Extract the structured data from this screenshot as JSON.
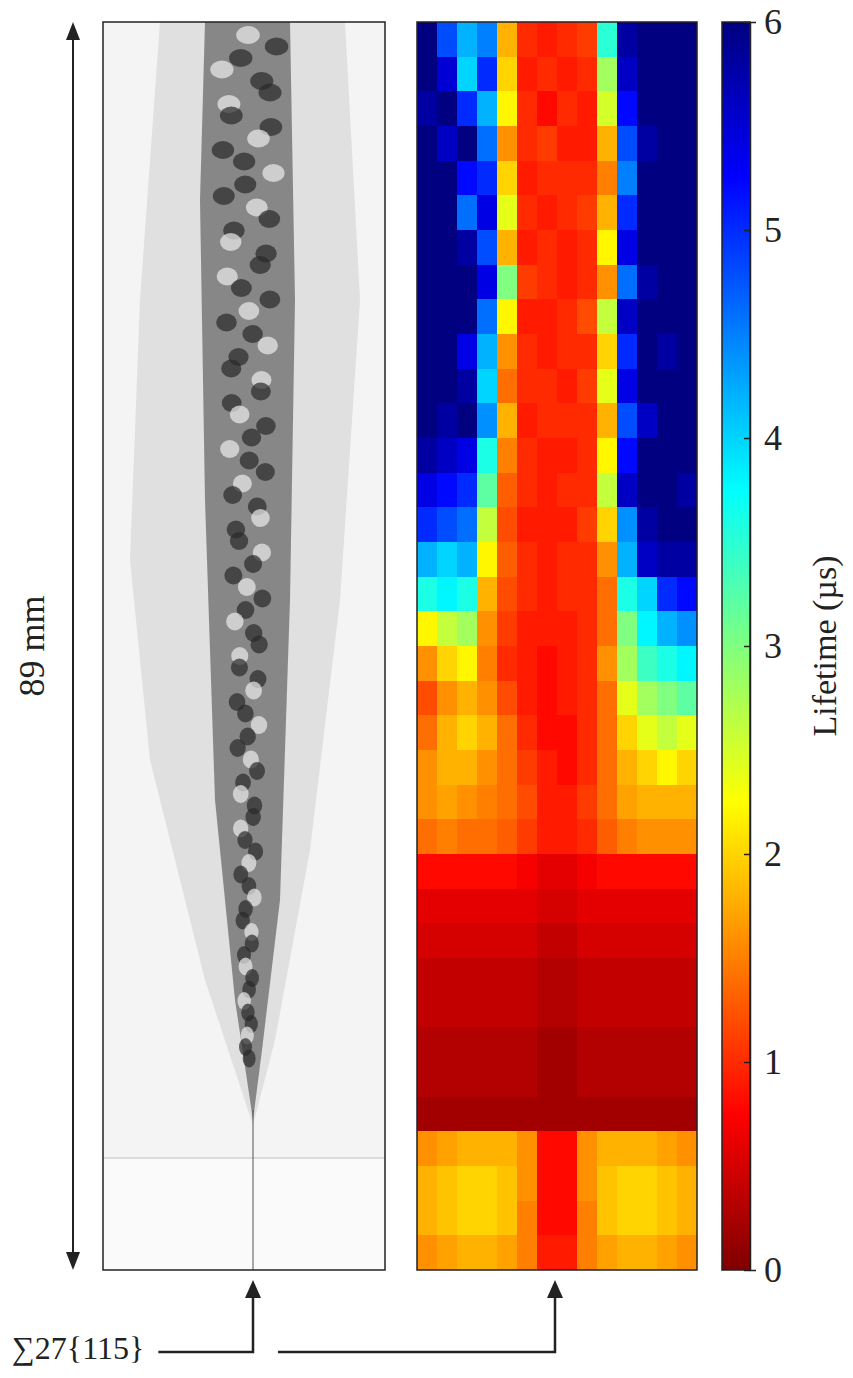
{
  "chart_data": {
    "type": "heatmap",
    "scale_label": "89 mm",
    "annotation": "∑27{115}",
    "colorbar": {
      "label": "Lifetime (µs)",
      "range": [
        0,
        6
      ],
      "ticks": [
        0,
        1,
        2,
        3,
        4,
        5,
        6
      ]
    },
    "cells": [
      [
        6,
        4.8,
        4.2,
        4.5,
        1.8,
        1.0,
        0.9,
        1.0,
        1.1,
        3.5,
        5.8,
        6,
        6,
        6
      ],
      [
        6,
        5.5,
        4.0,
        5.0,
        2.0,
        0.9,
        1.0,
        0.9,
        1.0,
        2.8,
        5.6,
        6,
        6,
        6
      ],
      [
        5.8,
        6,
        5.0,
        4.2,
        2.2,
        1.0,
        0.8,
        1.0,
        0.9,
        2.5,
        5.2,
        6,
        6,
        6
      ],
      [
        6,
        5.6,
        6,
        4.6,
        1.6,
        1.0,
        1.1,
        0.9,
        0.9,
        1.8,
        4.8,
        5.8,
        6,
        6
      ],
      [
        6,
        6,
        5.2,
        5.0,
        2.0,
        0.9,
        1.0,
        1.0,
        1.0,
        1.5,
        4.5,
        6,
        6,
        6
      ],
      [
        6,
        6,
        4.6,
        5.4,
        2.4,
        1.0,
        0.9,
        1.0,
        1.1,
        1.8,
        5.0,
        6,
        6,
        6
      ],
      [
        6,
        6,
        5.8,
        4.8,
        1.8,
        0.9,
        1.0,
        0.9,
        1.0,
        2.2,
        5.4,
        6,
        6,
        6
      ],
      [
        6,
        6,
        6,
        5.4,
        3.0,
        1.1,
        1.0,
        0.9,
        1.0,
        1.6,
        4.6,
        5.8,
        6,
        6
      ],
      [
        6,
        6,
        6,
        4.6,
        2.2,
        0.9,
        0.9,
        1.0,
        1.2,
        2.6,
        5.6,
        6,
        6,
        6
      ],
      [
        6,
        6,
        5.4,
        4.2,
        1.6,
        1.0,
        0.9,
        1.0,
        1.0,
        2.0,
        5.0,
        6,
        5.8,
        6
      ],
      [
        6,
        6,
        5.8,
        4.0,
        1.4,
        1.0,
        1.0,
        0.9,
        1.1,
        2.4,
        5.4,
        6,
        6,
        6
      ],
      [
        6,
        5.8,
        6,
        4.4,
        1.8,
        0.9,
        1.0,
        1.0,
        1.0,
        1.8,
        4.8,
        5.6,
        6,
        6
      ],
      [
        5.8,
        5.6,
        5.4,
        3.6,
        1.5,
        1.0,
        0.9,
        0.9,
        1.0,
        2.2,
        5.2,
        6,
        6,
        6
      ],
      [
        5.4,
        5.2,
        5.0,
        3.2,
        1.3,
        1.0,
        0.9,
        1.0,
        1.0,
        2.6,
        5.6,
        6,
        6,
        5.8
      ],
      [
        5.0,
        4.8,
        4.6,
        2.6,
        1.2,
        0.9,
        0.9,
        0.9,
        1.1,
        2.0,
        4.4,
        5.8,
        6,
        6
      ],
      [
        4.2,
        4.0,
        4.2,
        2.2,
        1.3,
        1.0,
        0.9,
        1.0,
        1.0,
        1.6,
        4.2,
        5.6,
        5.8,
        5.8
      ],
      [
        3.6,
        3.8,
        3.6,
        1.8,
        1.2,
        1.0,
        0.9,
        1.0,
        1.0,
        1.4,
        3.6,
        4.0,
        5.0,
        5.2
      ],
      [
        2.2,
        2.6,
        2.8,
        1.6,
        1.1,
        0.9,
        0.9,
        0.9,
        1.0,
        1.4,
        3.0,
        3.8,
        4.2,
        4.4
      ],
      [
        1.6,
        2.0,
        2.2,
        1.5,
        1.0,
        0.9,
        0.8,
        0.9,
        1.0,
        1.6,
        2.8,
        3.4,
        3.6,
        3.8
      ],
      [
        1.2,
        1.6,
        1.8,
        1.6,
        1.2,
        0.9,
        0.8,
        0.9,
        1.0,
        1.4,
        2.4,
        2.8,
        3.0,
        3.2
      ],
      [
        1.4,
        1.8,
        2.0,
        1.8,
        1.4,
        1.0,
        0.8,
        0.8,
        1.0,
        1.4,
        2.0,
        2.4,
        2.6,
        2.4
      ],
      [
        1.6,
        1.8,
        1.8,
        1.6,
        1.4,
        1.1,
        0.9,
        0.8,
        1.0,
        1.4,
        1.8,
        2.0,
        2.2,
        2.0
      ],
      [
        1.6,
        1.7,
        1.6,
        1.5,
        1.4,
        1.2,
        0.9,
        0.9,
        1.1,
        1.4,
        1.7,
        1.8,
        1.8,
        1.8
      ],
      [
        1.4,
        1.5,
        1.4,
        1.4,
        1.3,
        1.1,
        0.9,
        0.9,
        1.0,
        1.3,
        1.5,
        1.6,
        1.6,
        1.6
      ],
      [
        0.8,
        0.8,
        0.8,
        0.8,
        0.8,
        0.7,
        0.6,
        0.6,
        0.7,
        0.8,
        0.8,
        0.8,
        0.8,
        0.8
      ],
      [
        0.6,
        0.6,
        0.6,
        0.6,
        0.6,
        0.6,
        0.5,
        0.5,
        0.6,
        0.6,
        0.6,
        0.6,
        0.6,
        0.6
      ],
      [
        0.5,
        0.5,
        0.5,
        0.5,
        0.5,
        0.5,
        0.4,
        0.4,
        0.5,
        0.5,
        0.5,
        0.5,
        0.5,
        0.5
      ],
      [
        0.4,
        0.4,
        0.4,
        0.4,
        0.4,
        0.4,
        0.3,
        0.3,
        0.4,
        0.4,
        0.4,
        0.4,
        0.4,
        0.4
      ],
      [
        0.4,
        0.4,
        0.4,
        0.4,
        0.4,
        0.4,
        0.3,
        0.3,
        0.4,
        0.4,
        0.4,
        0.4,
        0.4,
        0.4
      ],
      [
        0.3,
        0.3,
        0.3,
        0.3,
        0.3,
        0.3,
        0.2,
        0.2,
        0.3,
        0.3,
        0.3,
        0.3,
        0.3,
        0.3
      ],
      [
        0.3,
        0.3,
        0.3,
        0.3,
        0.3,
        0.3,
        0.2,
        0.2,
        0.3,
        0.3,
        0.3,
        0.3,
        0.3,
        0.3
      ],
      [
        0.2,
        0.2,
        0.2,
        0.2,
        0.2,
        0.2,
        0.2,
        0.2,
        0.2,
        0.2,
        0.2,
        0.2,
        0.2,
        0.2
      ],
      [
        1.6,
        1.7,
        1.8,
        1.8,
        1.8,
        1.6,
        0.8,
        0.8,
        1.6,
        1.8,
        1.8,
        1.8,
        1.7,
        1.6
      ],
      [
        1.8,
        1.9,
        2.0,
        2.0,
        1.9,
        1.6,
        0.8,
        0.8,
        1.6,
        1.9,
        2.0,
        2.0,
        1.9,
        1.8
      ],
      [
        1.8,
        1.9,
        2.0,
        2.0,
        1.9,
        1.5,
        0.8,
        0.8,
        1.5,
        1.9,
        2.0,
        2.0,
        1.9,
        1.8
      ],
      [
        1.6,
        1.7,
        1.8,
        1.8,
        1.7,
        1.5,
        0.9,
        0.9,
        1.5,
        1.7,
        1.8,
        1.8,
        1.7,
        1.6
      ]
    ]
  }
}
